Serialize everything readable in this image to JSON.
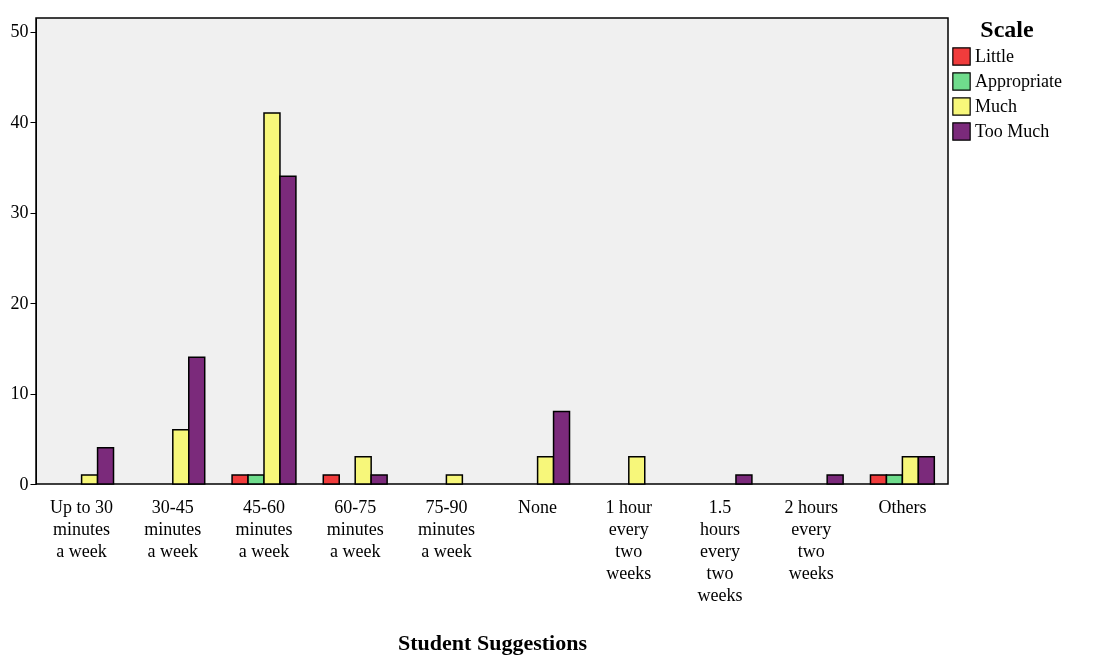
{
  "chart_data": {
    "type": "bar",
    "xlabel": "Student Suggestions",
    "legend_title": "Scale",
    "legend": "right",
    "grid": false,
    "categories": [
      "Up to 30\nminutes\na week",
      "30-45\nminutes\na week",
      "45-60\nminutes\na week",
      "60-75\nminutes\na week",
      "75-90\nminutes\na week",
      "None",
      "1 hour\nevery\ntwo\nweeks",
      "1.5\nhours\nevery\ntwo\nweeks",
      "2 hours\nevery\ntwo\nweeks",
      "Others"
    ],
    "ylim": [
      0,
      51.5
    ],
    "yticks": [
      0,
      10,
      20,
      30,
      40,
      50
    ],
    "series": [
      {
        "name": "Little",
        "color": "#f03c3c",
        "values": [
          null,
          null,
          1,
          1,
          null,
          null,
          null,
          null,
          null,
          1
        ]
      },
      {
        "name": "Appropriate",
        "color": "#6fdc8c",
        "values": [
          null,
          null,
          1,
          null,
          null,
          null,
          null,
          null,
          null,
          1
        ]
      },
      {
        "name": "Much",
        "color": "#f7f77a",
        "values": [
          1,
          6,
          41,
          3,
          1,
          3,
          3,
          null,
          null,
          3
        ]
      },
      {
        "name": "Too Much",
        "color": "#7b2a7b",
        "values": [
          4,
          14,
          34,
          1,
          null,
          8,
          null,
          1,
          1,
          3
        ]
      }
    ]
  }
}
